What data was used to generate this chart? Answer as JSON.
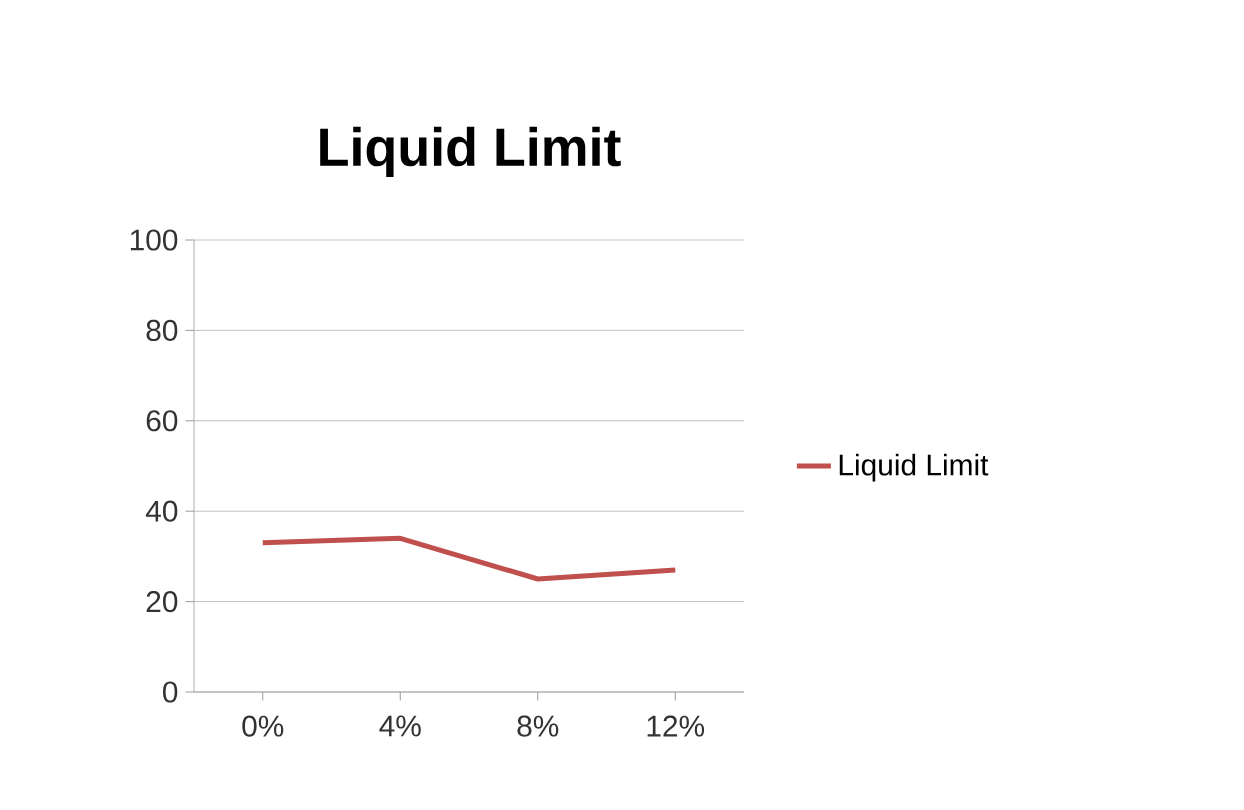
{
  "chart_data": {
    "type": "line",
    "title": "Liquid Limit",
    "categories": [
      "0%",
      "4%",
      "8%",
      "12%"
    ],
    "series": [
      {
        "name": "Liquid Limit",
        "color": "#c0504d",
        "values": [
          33,
          34,
          25,
          27
        ]
      }
    ],
    "ylim": [
      0,
      100
    ],
    "yticks": [
      0,
      20,
      40,
      60,
      80,
      100
    ],
    "grid": "y",
    "legend": "right",
    "marker": "none"
  }
}
